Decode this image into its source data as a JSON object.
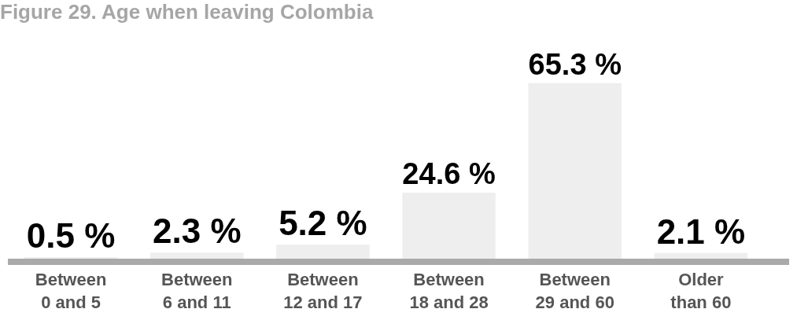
{
  "chart_data": {
    "type": "bar",
    "title": "Figure 29. Age when leaving Colombia",
    "categories": [
      "Between\n0 and 5",
      "Between\n6 and 11",
      "Between\n12 and 17",
      "Between\n18 and 28",
      "Between\n29 and 60",
      "Older\nthan 60"
    ],
    "values": [
      0.5,
      2.3,
      5.2,
      24.6,
      65.3,
      2.1
    ],
    "value_labels": [
      "0.5 %",
      "2.3 %",
      "5.2 %",
      "24.6 %",
      "65.3 %",
      "2.1 %"
    ],
    "color": "#eeeeee"
  }
}
